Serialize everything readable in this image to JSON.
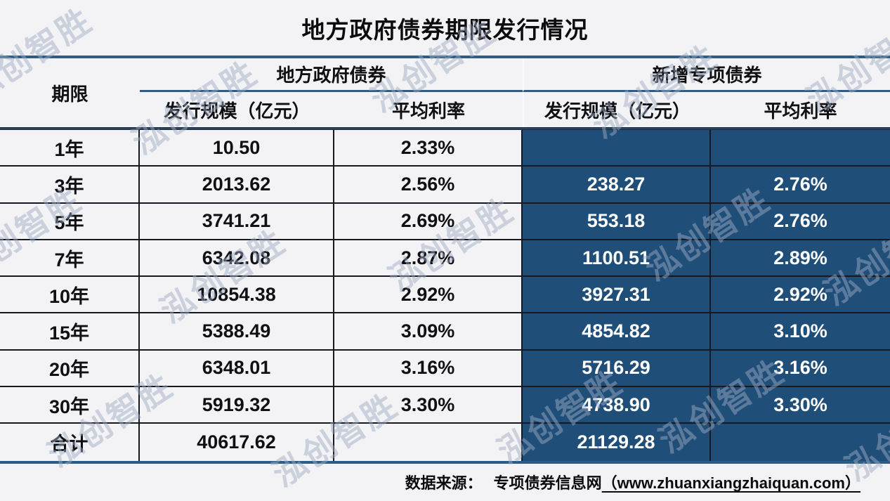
{
  "title": "地方政府债券期限发行情况",
  "watermark": {
    "text": "泓创智胜"
  },
  "table": {
    "corner_header": "期限",
    "groups": [
      {
        "label": "地方政府债券",
        "columns": [
          "发行规模（亿元）",
          "平均利率"
        ]
      },
      {
        "label": "新增专项债券",
        "columns": [
          "发行规模（亿元）",
          "平均利率"
        ]
      }
    ]
  },
  "chart_data": {
    "type": "table",
    "title": "地方政府债券期限发行情况",
    "column_groups": [
      "地方政府债券",
      "新增专项债券"
    ],
    "columns": [
      "期限",
      "地方政府债券 发行规模（亿元）",
      "地方政府债券 平均利率",
      "新增专项债券 发行规模（亿元）",
      "新增专项债券 平均利率"
    ],
    "rows": [
      {
        "cells": [
          "1年",
          "10.50",
          "2.33%",
          "",
          ""
        ]
      },
      {
        "cells": [
          "3年",
          "2013.62",
          "2.56%",
          "238.27",
          "2.76%"
        ]
      },
      {
        "cells": [
          "5年",
          "3741.21",
          "2.69%",
          "553.18",
          "2.76%"
        ]
      },
      {
        "cells": [
          "7年",
          "6342.08",
          "2.87%",
          "1100.51",
          "2.89%"
        ]
      },
      {
        "cells": [
          "10年",
          "10854.38",
          "2.92%",
          "3927.31",
          "2.92%"
        ]
      },
      {
        "cells": [
          "15年",
          "5388.49",
          "3.09%",
          "4854.82",
          "3.10%"
        ]
      },
      {
        "cells": [
          "20年",
          "6348.01",
          "3.16%",
          "5716.29",
          "3.16%"
        ]
      },
      {
        "cells": [
          "30年",
          "5919.32",
          "3.30%",
          "4738.90",
          "3.30%"
        ]
      },
      {
        "cells": [
          "合计",
          "40617.62",
          "",
          "21129.28",
          ""
        ]
      }
    ]
  },
  "footer": {
    "source_label": "数据来源：",
    "source_name": "专项债券信息网",
    "source_url": "（www.zhuanxiangzhaiquan.com）"
  },
  "colors": {
    "accent_blue": "#1F4E79",
    "rule_blue": "#2d5c85",
    "rule_dark": "#181822",
    "background": "#f3f3f5"
  }
}
